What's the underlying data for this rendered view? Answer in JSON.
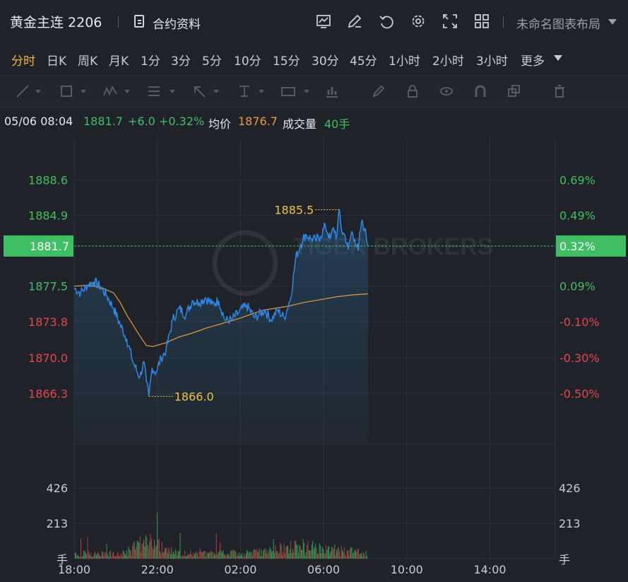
{
  "header": {
    "title": "黄金主连 2206",
    "contract_label": "合约资料",
    "layout_label": "未命名图表布局",
    "icons": [
      "chart-icon",
      "edit-icon",
      "undo-icon",
      "settings-icon",
      "fullscreen-icon",
      "grid-icon"
    ]
  },
  "periods": [
    {
      "label": "分时",
      "active": true
    },
    {
      "label": "日K"
    },
    {
      "label": "周K"
    },
    {
      "label": "月K"
    },
    {
      "label": "1分"
    },
    {
      "label": "3分"
    },
    {
      "label": "5分"
    },
    {
      "label": "10分"
    },
    {
      "label": "15分"
    },
    {
      "label": "30分"
    },
    {
      "label": "45分"
    },
    {
      "label": "1小时"
    },
    {
      "label": "2小时"
    },
    {
      "label": "3小时"
    },
    {
      "label": "更多"
    }
  ],
  "info": {
    "datetime": "05/06 08:04",
    "price": "1881.7",
    "change": "+6.0",
    "change_pct": "+0.32%",
    "avg_label": "均价",
    "avg_value": "1876.7",
    "vol_label": "成交量",
    "vol_value": "40手"
  },
  "colors": {
    "up": "#3fbf63",
    "down": "#e0484f",
    "price_line": "#2e88e6",
    "avg_line": "#e89a3a",
    "annot": "#f2c43a"
  },
  "watermark": "TIGER BROKERS",
  "chart_data": {
    "type": "line",
    "x_ticks": [
      "18:00",
      "22:00",
      "02:00",
      "06:00",
      "10:00",
      "14:00"
    ],
    "y_ticks": [
      {
        "price": "1888.6",
        "pct": "0.69%",
        "dir": "up"
      },
      {
        "price": "1884.9",
        "pct": "0.49%",
        "dir": "up"
      },
      {
        "price": "1877.5",
        "pct": "0.09%",
        "dir": "up"
      },
      {
        "price": "1873.8",
        "pct": "-0.10%",
        "dir": "down"
      },
      {
        "price": "1870.0",
        "pct": "-0.30%",
        "dir": "down"
      },
      {
        "price": "1866.3",
        "pct": "-0.50%",
        "dir": "down"
      }
    ],
    "current": {
      "price": "1881.7",
      "pct": "0.32%"
    },
    "ylim": [
      1861.0,
      1893.0
    ],
    "xlim": [
      0,
      1260
    ],
    "high": {
      "label": "1885.5",
      "value": 1885.5,
      "t": 323
    },
    "low": {
      "label": "1866.0",
      "value": 1866.0,
      "t": 91
    },
    "series": [
      {
        "name": "价格",
        "t": [
          0,
          8,
          16,
          24,
          32,
          40,
          48,
          56,
          64,
          72,
          80,
          85,
          88,
          91,
          95,
          100,
          106,
          112,
          120,
          128,
          136,
          144,
          152,
          160,
          168,
          176,
          184,
          192,
          200,
          210,
          220,
          232,
          240,
          248,
          256,
          264,
          270,
          276,
          282,
          288,
          294,
          300,
          306,
          312,
          316,
          320,
          323,
          326,
          330,
          334,
          338,
          342,
          346,
          350,
          354,
          356,
          358
        ],
        "values": [
          1877.3,
          1876.8,
          1877.6,
          1878.0,
          1877.4,
          1876.5,
          1875.2,
          1873.5,
          1872.0,
          1869.5,
          1868.0,
          1869.6,
          1867.5,
          1866.0,
          1869.0,
          1868.5,
          1870.0,
          1870.8,
          1874.0,
          1875.2,
          1874.5,
          1876.0,
          1875.8,
          1876.3,
          1875.6,
          1876.0,
          1873.9,
          1874.0,
          1874.7,
          1875.5,
          1874.2,
          1875.0,
          1874.0,
          1875.0,
          1874.2,
          1876.4,
          1880.5,
          1881.9,
          1882.9,
          1882.5,
          1882.3,
          1882.7,
          1883.8,
          1882.4,
          1883.6,
          1882.7,
          1885.5,
          1883.2,
          1882.8,
          1881.3,
          1883.2,
          1882.4,
          1881.2,
          1884.2,
          1883.5,
          1882.5,
          1881.7
        ]
      },
      {
        "name": "均价",
        "t": [
          0,
          16,
          32,
          48,
          56,
          64,
          72,
          80,
          88,
          96,
          112,
          128,
          144,
          160,
          176,
          200,
          230,
          260,
          280,
          300,
          320,
          340,
          358
        ],
        "values": [
          1877.5,
          1877.6,
          1877.4,
          1876.8,
          1875.8,
          1874.5,
          1873.4,
          1872.3,
          1871.3,
          1871.2,
          1871.6,
          1872.2,
          1872.6,
          1873.1,
          1873.5,
          1874.1,
          1875.0,
          1875.4,
          1875.8,
          1876.1,
          1876.4,
          1876.6,
          1876.7
        ]
      }
    ],
    "volume": {
      "ylabel": "手",
      "ticks": [
        "426",
        "213"
      ],
      "ylim": [
        0,
        639
      ]
    }
  }
}
